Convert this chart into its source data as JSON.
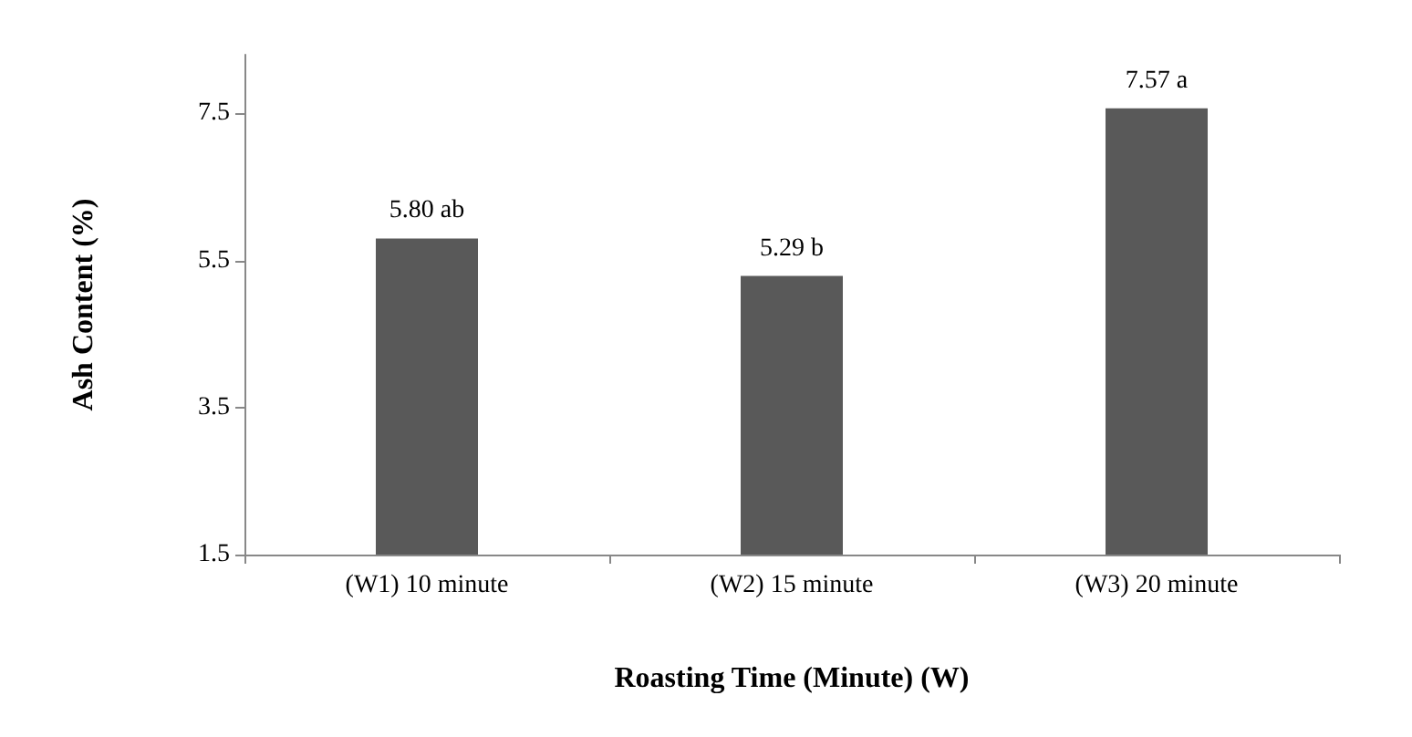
{
  "chart_data": {
    "type": "bar",
    "xlabel": "Roasting Time (Minute) (W)",
    "ylabel": "Ash Content (%)",
    "categories": [
      "(W1) 10 minute",
      "(W2) 15 minute",
      "(W3) 20 minute"
    ],
    "values": [
      5.8,
      5.29,
      7.57
    ],
    "color": "#595959",
    "value_labels": [
      "5.80 ab",
      "5.29 b",
      "7.57 a"
    ],
    "ylim": [
      1.5,
      8.3
    ],
    "yticks": [
      1.5,
      3.5,
      5.5,
      7.5
    ]
  }
}
